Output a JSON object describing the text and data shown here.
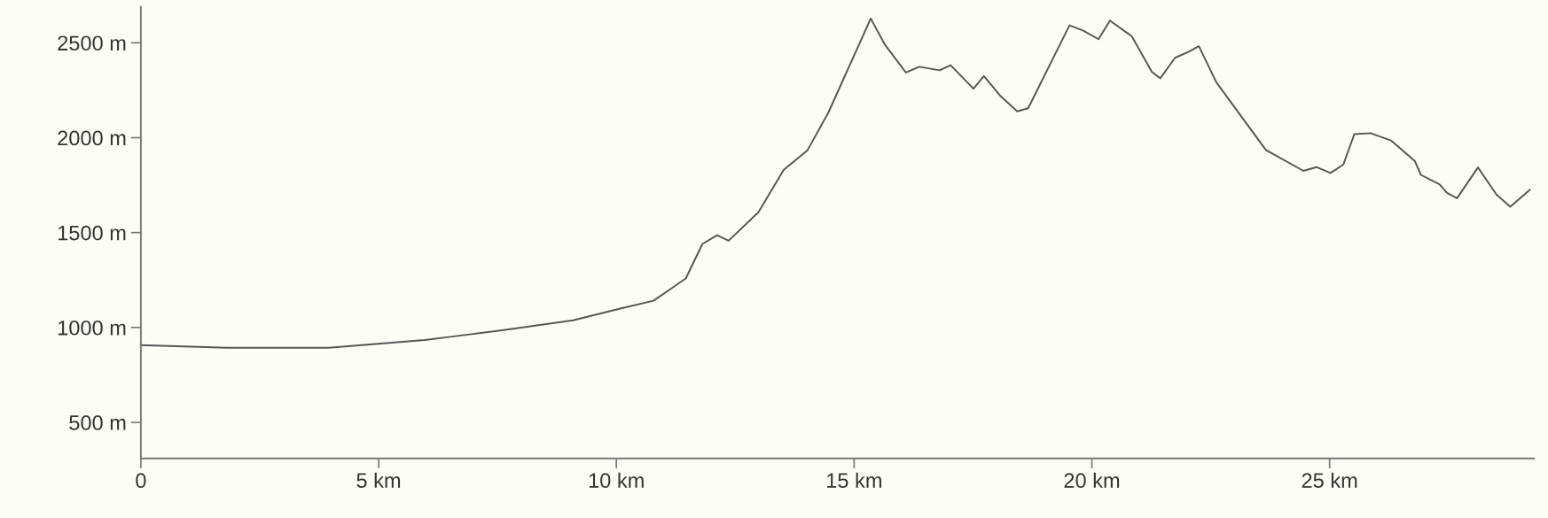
{
  "chart_data": {
    "type": "line",
    "x": [
      0,
      1.81,
      3.95,
      5.97,
      7.63,
      9.09,
      10.1,
      10.78,
      11.46,
      11.81,
      12.12,
      12.36,
      12.99,
      13.52,
      14.02,
      14.46,
      15.35,
      15.64,
      16.09,
      16.37,
      16.8,
      17.03,
      17.51,
      17.73,
      18.07,
      18.43,
      18.66,
      19.53,
      19.82,
      20.14,
      20.38,
      20.84,
      21.26,
      21.44,
      21.75,
      22.04,
      22.25,
      22.62,
      23.66,
      24.45,
      24.72,
      25.02,
      25.29,
      25.52,
      25.86,
      26.3,
      26.79,
      26.92,
      27.31,
      27.47,
      27.68,
      28.12,
      28.51,
      28.8,
      29.21
    ],
    "series": [
      {
        "color": "#555555",
        "values": [
          907,
          893,
          893,
          934,
          986,
          1038,
          1101,
          1141,
          1258,
          1440,
          1486,
          1457,
          1608,
          1831,
          1934,
          2133,
          2628,
          2493,
          2343,
          2374,
          2355,
          2382,
          2258,
          2325,
          2222,
          2139,
          2155,
          2592,
          2564,
          2519,
          2617,
          2534,
          2348,
          2313,
          2421,
          2453,
          2482,
          2291,
          1935,
          1825,
          1845,
          1814,
          1859,
          2019,
          2024,
          1984,
          1878,
          1804,
          1754,
          1709,
          1681,
          1843,
          1700,
          1636,
          1725
        ]
      }
    ],
    "xlim": [
      0,
      29.3
    ],
    "ylim": [
      310,
      2690
    ],
    "xticks": [
      0,
      {
        "value": 5,
        "label": "5 km"
      },
      {
        "value": 10,
        "label": "10 km"
      },
      {
        "value": 15,
        "label": "15 km"
      },
      {
        "value": 20,
        "label": "20 km"
      },
      {
        "value": 25,
        "label": "25 km"
      }
    ],
    "yticks": [
      {
        "value": 500,
        "label": "500 m"
      },
      {
        "value": 1000,
        "label": "1000 m"
      },
      {
        "value": 1500,
        "label": "1500 m"
      },
      {
        "value": 2000,
        "label": "2000 m"
      },
      {
        "value": 2500,
        "label": "2500 m"
      }
    ],
    "grid": false,
    "marker": "none",
    "line_style": "solid"
  }
}
